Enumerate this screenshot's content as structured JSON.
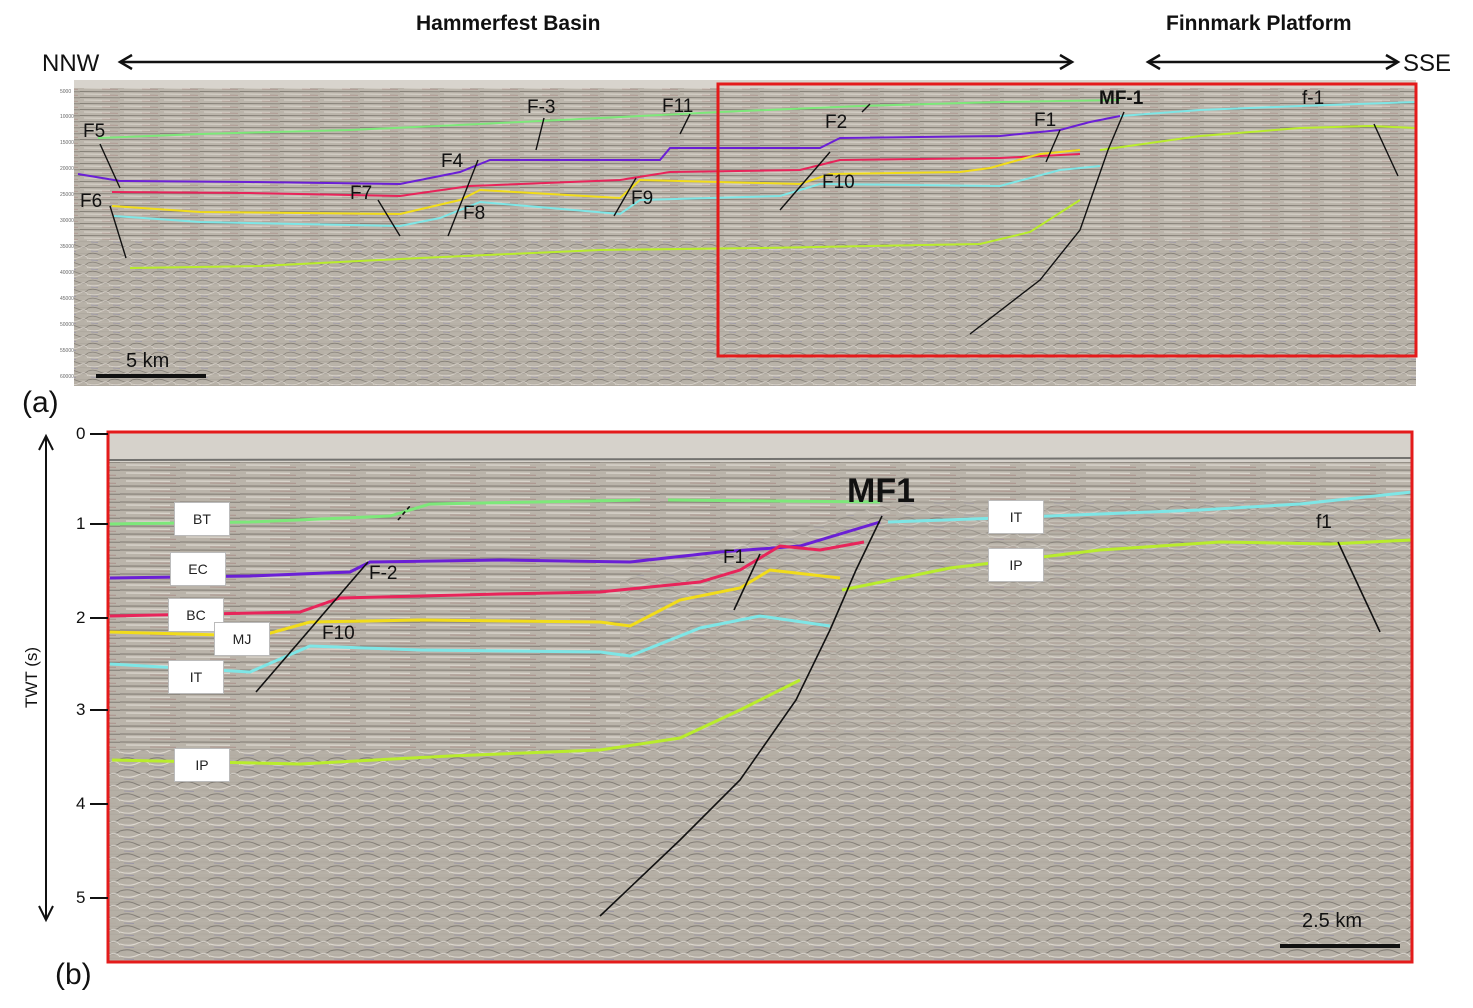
{
  "header": {
    "region_left": "Hammerfest Basin",
    "region_right": "Finnmark Platform",
    "dir_left": "NNW",
    "dir_right": "SSE"
  },
  "panel_a": {
    "letter": "(a)",
    "scale_label": "5 km",
    "fault_labels": [
      "F5",
      "F6",
      "F7",
      "F8",
      "F4",
      "F-3",
      "F9",
      "F11",
      "F2",
      "F10",
      "F1",
      "MF-1",
      "f-1"
    ],
    "depth_ticks": [
      "5000",
      "10000",
      "15000",
      "20000",
      "25000",
      "30000",
      "35000",
      "40000",
      "45000",
      "50000",
      "55000",
      "60000"
    ]
  },
  "panel_b": {
    "letter": "(b)",
    "axis_title": "TWT (s)",
    "ticks": [
      "0",
      "1",
      "2",
      "3",
      "4",
      "5"
    ],
    "scale_label": "2.5 km",
    "horizon_tags": [
      "BT",
      "EC",
      "BC",
      "MJ",
      "IT",
      "IP",
      "IT",
      "IP"
    ],
    "fault_labels": [
      "F-2",
      "F10",
      "F1",
      "MF1",
      "f1"
    ]
  },
  "colors": {
    "highlight_box": "#e41b1b",
    "horizon_bt": "#7de87a",
    "horizon_ec": "#6a1fd6",
    "horizon_bc": "#e8245a",
    "horizon_mj": "#f1dc1a",
    "horizon_it": "#7ee6e6",
    "horizon_ip": "#b9ec2c",
    "seismic_bg": "#b8b2a8"
  }
}
